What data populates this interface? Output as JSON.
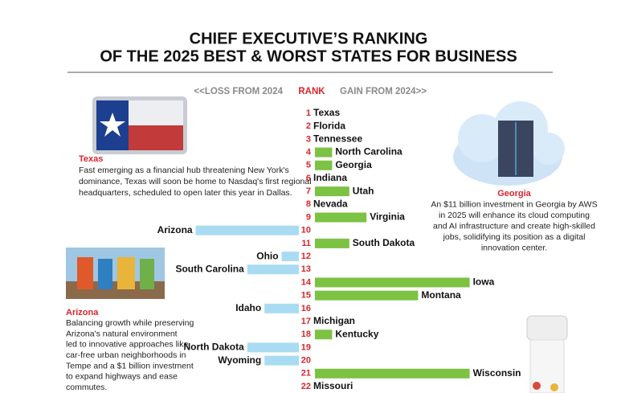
{
  "chart_data": {
    "type": "diverging-bar",
    "title": [
      "CHIEF EXECUTIVE’S RANKING",
      "OF THE 2025 BEST & WORST STATES FOR BUSINESS"
    ],
    "left_header": "<<LOSS FROM 2024",
    "center_header": "RANK",
    "right_header": "GAIN FROM 2024>>",
    "ranks": [
      1,
      2,
      3,
      4,
      5,
      6,
      7,
      8,
      9,
      10,
      11,
      12,
      13,
      14,
      15,
      16,
      17,
      18,
      19,
      20,
      21,
      22
    ],
    "categories": [
      "Texas",
      "Florida",
      "Tennessee",
      "North Carolina",
      "Georgia",
      "Indiana",
      "Utah",
      "Nevada",
      "Virginia",
      "Arizona",
      "South Dakota",
      "Ohio",
      "South Carolina",
      "Iowa",
      "Montana",
      "Idaho",
      "Michigan",
      "Kentucky",
      "North Dakota",
      "Wyoming",
      "Wisconsin",
      "Missouri"
    ],
    "values": [
      0,
      0,
      0,
      1,
      1,
      0,
      2,
      0,
      3,
      -6,
      2,
      -1,
      -3,
      9,
      6,
      -2,
      0,
      1,
      -3,
      -2,
      9,
      0
    ],
    "gain_color": "#7cc243",
    "loss_color": "#a9dcf2",
    "rank_color": "#d7262d",
    "annotations": [
      {
        "heading": "Texas",
        "lines": [
          "Fast emerging as a financial hub threatening New York's",
          "dominance, Texas will soon be home to Nasdaq's first regional",
          "headquarters, scheduled to open later this year in Dallas."
        ]
      },
      {
        "heading": "Georgia",
        "lines": [
          "An $11 billion investment in Georgia by AWS",
          "in 2025 will enhance its cloud computing",
          "and AI infrastructure and create high-skilled",
          "jobs, solidifying its position as a digital",
          "innovation center."
        ]
      },
      {
        "heading": "Arizona",
        "lines": [
          "Balancing growth while preserving",
          "Arizona's natural environment",
          "led to innovative approaches like",
          "car-free urban neighborhoods in",
          "Tempe and a $1 billion investment",
          "to expand highways and ease",
          "commutes."
        ]
      }
    ]
  }
}
